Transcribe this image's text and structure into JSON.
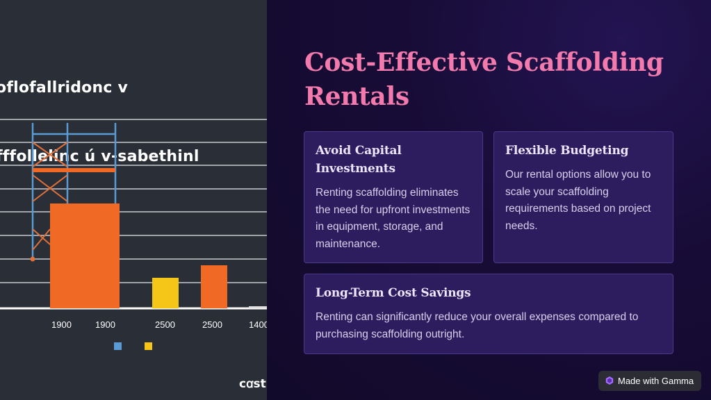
{
  "left_image": {
    "title_lines": [
      "oflofallridonc v",
      "fffollelinc ú v-sabethinl"
    ],
    "x_labels": [
      "1900",
      "1900",
      "2500",
      "2500",
      "1400"
    ],
    "logo_text": "cꭤst"
  },
  "heading_lines": [
    "Cost-Effective Scaffolding",
    "Rentals"
  ],
  "cards": [
    {
      "title": "Avoid Capital Investments",
      "body": "Renting scaffolding eliminates the need for upfront investments in equipment, storage, and maintenance."
    },
    {
      "title": "Flexible Budgeting",
      "body": "Our rental options allow you to scale your scaffolding requirements based on project needs."
    },
    {
      "title": "Long-Term Cost Savings",
      "body": "Renting can significantly reduce your overall expenses compared to purchasing scaffolding outright."
    }
  ],
  "badge": {
    "label": "Made with Gamma",
    "icon": "gamma-logo-icon"
  },
  "colors": {
    "heading": "#f27aac",
    "card_bg": "#2e1d5e",
    "bar_orange": "#f06a26",
    "bar_yellow": "#f5c518",
    "scaffold_blue": "#5b9bd5"
  }
}
